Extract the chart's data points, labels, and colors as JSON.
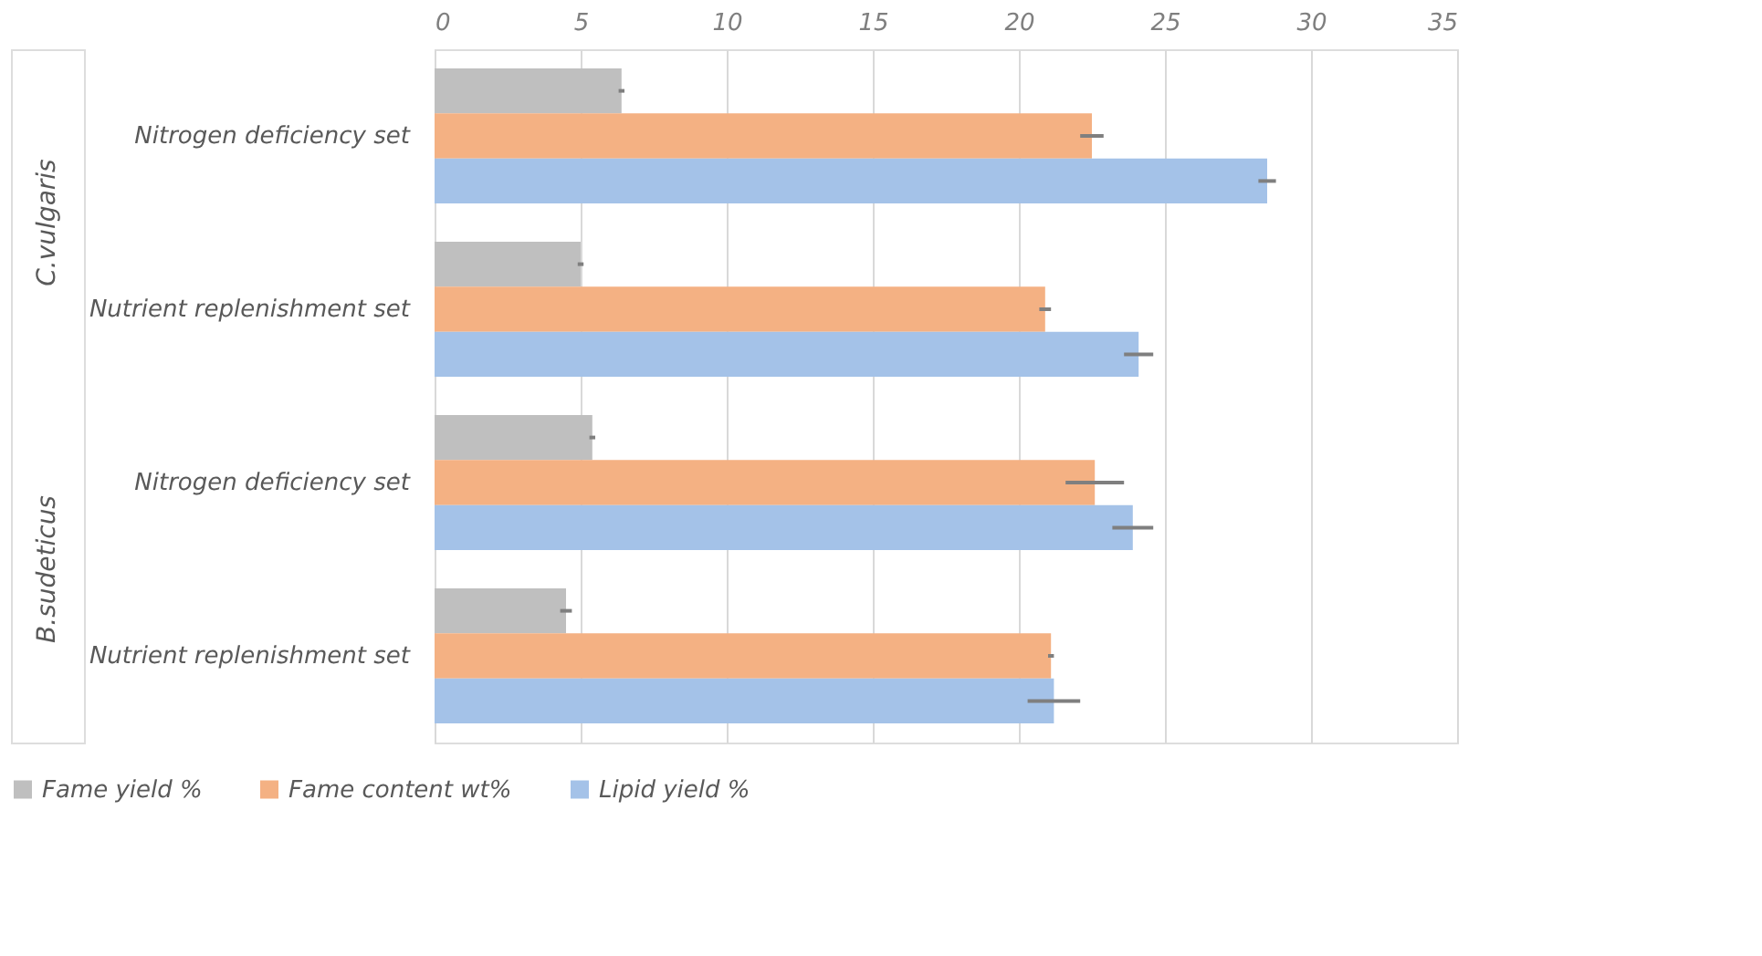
{
  "chart_data": {
    "type": "bar",
    "orientation": "horizontal",
    "categories": [
      "Nitrogen deficiency set",
      "Nutrient replenishment set",
      "Nitrogen deficiency set",
      "Nutrient replenishment set"
    ],
    "annotations": [
      "C.vulgaris",
      "B.sudeticus"
    ],
    "series": [
      {
        "name": "Fame yield %",
        "color": "#bfbfbf",
        "values": [
          6.4,
          5.0,
          5.4,
          4.5
        ],
        "errors": [
          0.1,
          0.1,
          0.1,
          0.2
        ]
      },
      {
        "name": "Fame content wt%",
        "color": "#f4b183",
        "values": [
          22.5,
          20.9,
          22.6,
          21.1
        ],
        "errors": [
          0.4,
          0.2,
          1.0,
          0.1
        ]
      },
      {
        "name": "Lipid yield %",
        "color": "#a4c2e8",
        "values": [
          28.5,
          24.1,
          23.9,
          21.2
        ],
        "errors": [
          0.3,
          0.5,
          0.7,
          0.9
        ]
      }
    ],
    "xlim": [
      0,
      35
    ],
    "xticks": [
      0,
      5,
      10,
      15,
      20,
      25,
      30,
      35
    ],
    "grid": "x",
    "legend": "bottom"
  }
}
